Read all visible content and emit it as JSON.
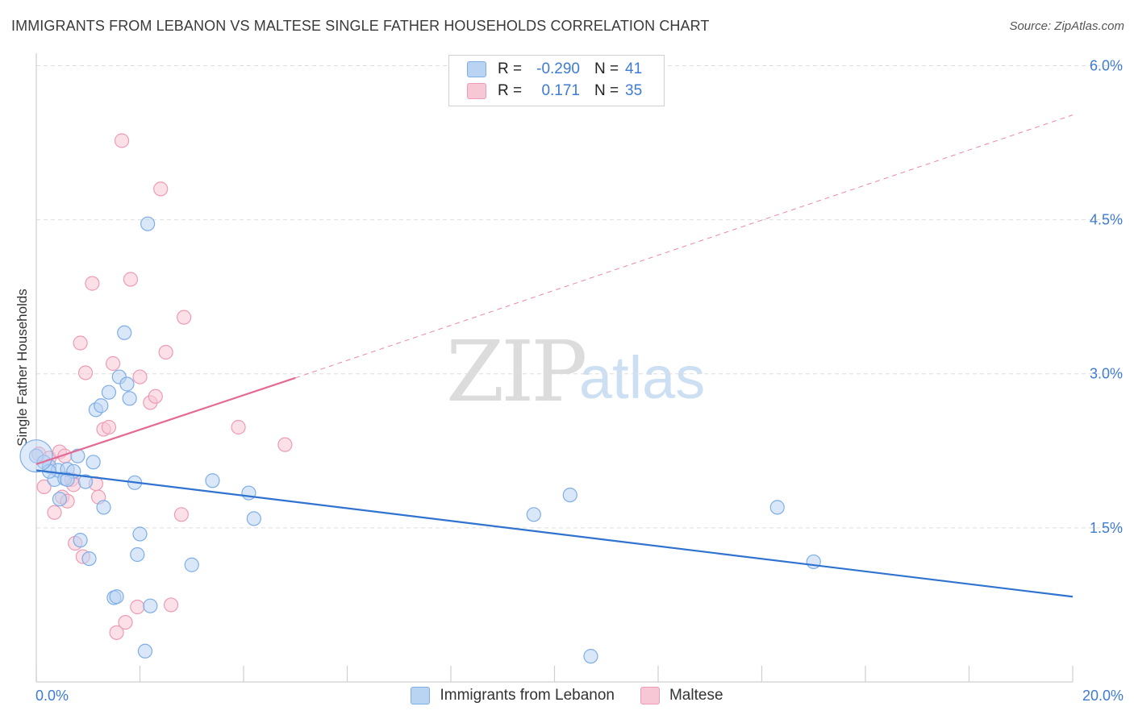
{
  "title": "IMMIGRANTS FROM LEBANON VS MALTESE SINGLE FATHER HOUSEHOLDS CORRELATION CHART",
  "source": "Source: ZipAtlas.com",
  "watermark": {
    "zip": "ZIP",
    "atlas": "atlas"
  },
  "legend": {
    "rows": [
      {
        "r_label": "R =",
        "r_value": "-0.290",
        "n_label": "N =",
        "n_value": "41"
      },
      {
        "r_label": "R =",
        "r_value": "0.171",
        "n_label": "N =",
        "n_value": "35"
      }
    ]
  },
  "bottom_legend": [
    "Immigrants from Lebanon",
    "Maltese"
  ],
  "colors": {
    "blue_fill": "#b9d3f3",
    "blue_stroke": "#7eaee6",
    "blue_line": "#2f72d0",
    "pink_fill": "#f8c7d6",
    "pink_stroke": "#ee9bb5",
    "pink_line": "#e36a94",
    "grid": "#dedede",
    "tick_text": "#3d7bd4"
  },
  "chart_data": {
    "type": "scatter",
    "title": "IMMIGRANTS FROM LEBANON VS MALTESE SINGLE FATHER HOUSEHOLDS CORRELATION CHART",
    "xlabel": "",
    "ylabel": "Single Father Households",
    "xlim": [
      0,
      20
    ],
    "ylim": [
      0,
      6.2
    ],
    "x_tick_labels": [
      "0.0%",
      "20.0%"
    ],
    "y_ticks": [
      1.5,
      3.0,
      4.5,
      6.0
    ],
    "y_tick_labels": [
      "1.5%",
      "3.0%",
      "4.5%",
      "6.0%"
    ],
    "grid": true,
    "series": [
      {
        "name": "Immigrants from Lebanon",
        "r": -0.29,
        "n": 41,
        "trend": {
          "x": [
            0,
            20
          ],
          "y": [
            2.06,
            0.83
          ]
        },
        "points": [
          [
            0.0,
            2.2
          ],
          [
            0.15,
            2.14
          ],
          [
            0.25,
            2.1
          ],
          [
            0.35,
            1.97
          ],
          [
            0.42,
            2.06
          ],
          [
            0.45,
            1.78
          ],
          [
            0.55,
            1.98
          ],
          [
            0.6,
            2.07
          ],
          [
            0.72,
            2.05
          ],
          [
            0.8,
            2.2
          ],
          [
            0.85,
            1.38
          ],
          [
            0.95,
            1.95
          ],
          [
            1.02,
            1.2
          ],
          [
            1.1,
            2.14
          ],
          [
            1.15,
            2.65
          ],
          [
            1.25,
            2.69
          ],
          [
            1.3,
            1.7
          ],
          [
            1.4,
            2.82
          ],
          [
            1.5,
            0.82
          ],
          [
            1.55,
            0.83
          ],
          [
            1.6,
            2.97
          ],
          [
            1.7,
            3.4
          ],
          [
            1.75,
            2.9
          ],
          [
            1.8,
            2.76
          ],
          [
            1.9,
            1.94
          ],
          [
            1.95,
            1.24
          ],
          [
            2.0,
            1.44
          ],
          [
            2.1,
            0.3
          ],
          [
            2.15,
            4.46
          ],
          [
            2.2,
            0.74
          ],
          [
            3.0,
            1.14
          ],
          [
            3.4,
            1.96
          ],
          [
            4.1,
            1.84
          ],
          [
            4.2,
            1.59
          ],
          [
            9.6,
            1.63
          ],
          [
            10.3,
            1.82
          ],
          [
            10.7,
            0.25
          ],
          [
            14.3,
            1.7
          ],
          [
            15.0,
            1.17
          ],
          [
            0.25,
            2.05
          ],
          [
            0.6,
            1.97
          ]
        ]
      },
      {
        "name": "Maltese",
        "r": 0.171,
        "n": 35,
        "trend_solid": {
          "x": [
            0,
            5.0
          ],
          "y": [
            2.12,
            2.96
          ]
        },
        "trend_dashed": {
          "x": [
            5.0,
            20
          ],
          "y": [
            2.96,
            5.52
          ]
        },
        "points": [
          [
            0.05,
            2.22
          ],
          [
            0.15,
            1.9
          ],
          [
            0.25,
            2.18
          ],
          [
            0.35,
            1.65
          ],
          [
            0.45,
            2.24
          ],
          [
            0.5,
            1.8
          ],
          [
            0.55,
            2.2
          ],
          [
            0.6,
            1.76
          ],
          [
            0.68,
            1.97
          ],
          [
            0.72,
            1.92
          ],
          [
            0.75,
            1.35
          ],
          [
            0.85,
            3.3
          ],
          [
            0.9,
            1.22
          ],
          [
            0.95,
            3.01
          ],
          [
            1.08,
            3.88
          ],
          [
            1.15,
            1.93
          ],
          [
            1.2,
            1.8
          ],
          [
            1.3,
            2.46
          ],
          [
            1.4,
            2.48
          ],
          [
            1.48,
            3.1
          ],
          [
            1.55,
            0.48
          ],
          [
            1.65,
            5.27
          ],
          [
            1.72,
            0.58
          ],
          [
            1.82,
            3.92
          ],
          [
            1.95,
            0.73
          ],
          [
            2.0,
            2.97
          ],
          [
            2.2,
            2.72
          ],
          [
            2.3,
            2.78
          ],
          [
            2.4,
            4.8
          ],
          [
            2.5,
            3.21
          ],
          [
            2.6,
            0.75
          ],
          [
            2.8,
            1.63
          ],
          [
            2.85,
            3.55
          ],
          [
            3.9,
            2.48
          ],
          [
            4.8,
            2.31
          ]
        ]
      }
    ]
  }
}
